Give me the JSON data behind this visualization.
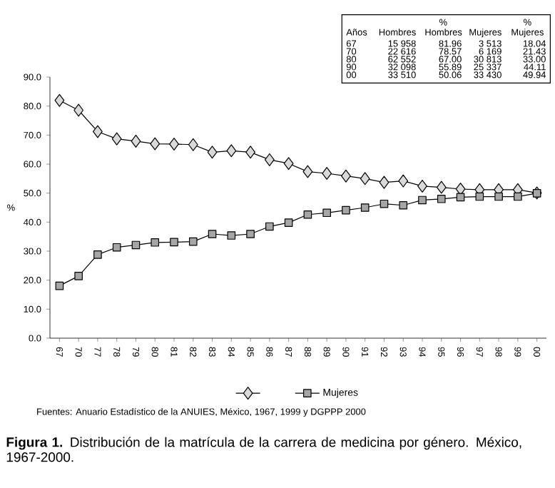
{
  "chart_data": {
    "type": "line",
    "title": "**Figura 1.** Distribución de la matrícula de la carrera de medicina por género. México, 1967-2000.",
    "ylabel": "%",
    "categories": [
      "67",
      "70",
      "77",
      "78",
      "79",
      "80",
      "81",
      "82",
      "83",
      "84",
      "85",
      "86",
      "87",
      "88",
      "89",
      "90",
      "91",
      "92",
      "93",
      "94",
      "95",
      "96",
      "97",
      "98",
      "99",
      "00"
    ],
    "series": [
      {
        "color": "#d9d9d9",
        "marker": "diamond",
        "values": [
          81.96,
          78.57,
          71.2,
          68.7,
          67.9,
          67.0,
          66.9,
          66.7,
          64.1,
          64.6,
          64.1,
          61.5,
          60.2,
          57.4,
          56.8,
          55.89,
          55.0,
          53.7,
          54.2,
          52.4,
          52.0,
          51.4,
          51.2,
          51.2,
          51.2,
          50.06
        ]
      },
      {
        "name": "Mujeres",
        "color": "#a6a6a6",
        "marker": "square",
        "values": [
          18.04,
          21.43,
          28.8,
          31.3,
          32.1,
          33.0,
          33.1,
          33.3,
          35.9,
          35.4,
          35.9,
          38.5,
          39.8,
          42.6,
          43.2,
          44.11,
          45.0,
          46.3,
          45.8,
          47.6,
          48.0,
          48.6,
          48.8,
          48.8,
          48.8,
          49.94
        ]
      }
    ],
    "ylim": [
      0,
      90
    ],
    "yticks": [
      {
        "value": 0,
        "label": "0.0"
      },
      {
        "value": 10,
        "label": "10.0"
      },
      {
        "value": 20,
        "label": "20.0"
      },
      {
        "value": 30,
        "label": "30.0"
      },
      {
        "value": 40,
        "label": "40.0"
      },
      {
        "value": 50,
        "label": "50.0"
      },
      {
        "value": 60,
        "label": "60.0"
      },
      {
        "value": 70,
        "label": "70.0"
      },
      {
        "value": 80,
        "label": "80.0"
      },
      {
        "value": 90,
        "label": "90.0"
      }
    ],
    "grid": false,
    "legend": "bottom",
    "annotations": [
      "Fuentes: Anuario Estadístico de la ANUIES, México, 1967, 1999 y DGPPP 2000",
      "Años",
      "Hombres",
      "% Hombres",
      "Mujeres",
      "% Mujeres",
      "67",
      "15 958",
      "81.96",
      "3 513",
      "18.04",
      "70",
      "22 616",
      "78.57",
      "6 169",
      "21.43",
      "80",
      "62 552",
      "67.00",
      "30 813",
      "33.00",
      "90",
      "32 098",
      "55.89",
      "25 337",
      "44.11",
      "00",
      "33 510",
      "50.06",
      "33 430",
      "49.94"
    ]
  }
}
